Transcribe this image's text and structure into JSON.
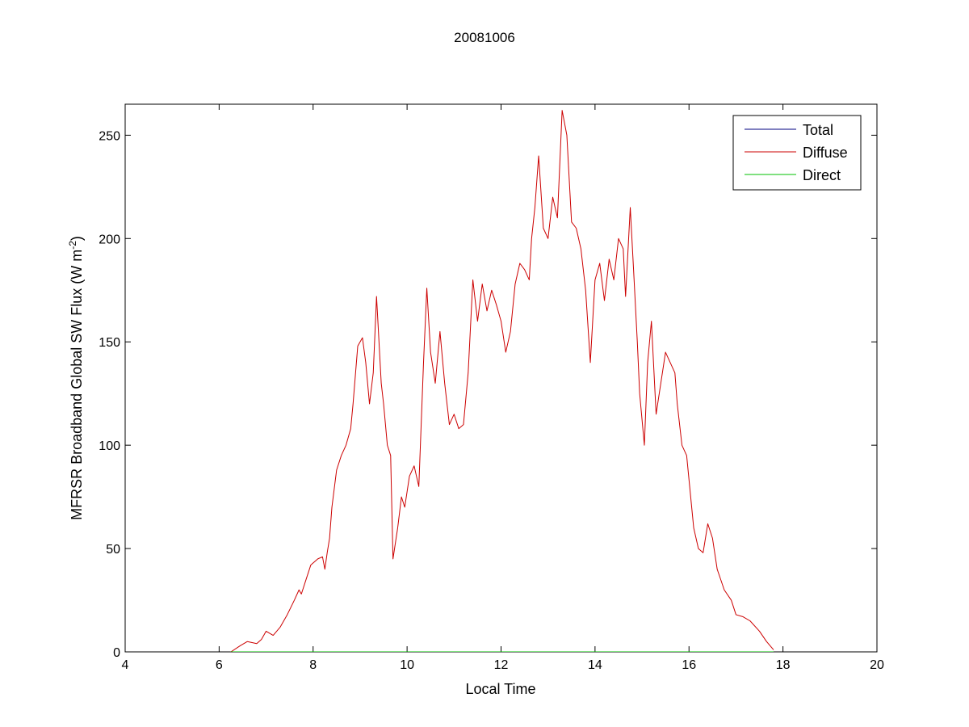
{
  "chart_data": {
    "type": "line",
    "title": "20081006",
    "xlabel": "Local Time",
    "ylabel": {
      "main": "MFRSR Broadband Global SW Flux (W m",
      "sup": "-2",
      "close": ")"
    },
    "xlim": [
      4,
      20
    ],
    "ylim": [
      0,
      265
    ],
    "xticks": [
      "4",
      "6",
      "8",
      "10",
      "12",
      "14",
      "16",
      "18",
      "20"
    ],
    "yticks": [
      "0",
      "50",
      "100",
      "150",
      "200",
      "250"
    ],
    "grid": false,
    "legend_position": "top-right",
    "series": [
      {
        "name": "Total",
        "color": "#000080",
        "x": [
          6.25,
          17.8
        ],
        "y": [
          0,
          0
        ]
      },
      {
        "name": "Diffuse",
        "color": "#cc0000",
        "x": [
          6.25,
          6.45,
          6.6,
          6.8,
          6.9,
          7.0,
          7.15,
          7.3,
          7.45,
          7.6,
          7.7,
          7.75,
          7.85,
          7.95,
          8.1,
          8.2,
          8.25,
          8.3,
          8.35,
          8.4,
          8.5,
          8.6,
          8.7,
          8.8,
          8.85,
          8.95,
          9.05,
          9.12,
          9.2,
          9.28,
          9.35,
          9.45,
          9.5,
          9.58,
          9.65,
          9.7,
          9.8,
          9.88,
          9.95,
          10.05,
          10.15,
          10.25,
          10.35,
          10.42,
          10.5,
          10.6,
          10.7,
          10.8,
          10.9,
          11.0,
          11.1,
          11.2,
          11.3,
          11.4,
          11.5,
          11.6,
          11.7,
          11.8,
          11.9,
          12.0,
          12.1,
          12.2,
          12.3,
          12.4,
          12.5,
          12.6,
          12.65,
          12.72,
          12.8,
          12.9,
          13.0,
          13.1,
          13.2,
          13.3,
          13.4,
          13.5,
          13.6,
          13.7,
          13.8,
          13.9,
          14.0,
          14.1,
          14.2,
          14.3,
          14.4,
          14.5,
          14.6,
          14.65,
          14.75,
          14.82,
          14.9,
          14.95,
          15.05,
          15.12,
          15.2,
          15.3,
          15.4,
          15.5,
          15.6,
          15.7,
          15.75,
          15.85,
          15.95,
          16.1,
          16.2,
          16.3,
          16.4,
          16.5,
          16.6,
          16.75,
          16.9,
          17.0,
          17.15,
          17.3,
          17.5,
          17.65,
          17.8
        ],
        "y": [
          0,
          3,
          5,
          4,
          6,
          10,
          8,
          12,
          18,
          25,
          30,
          28,
          35,
          42,
          45,
          46,
          40,
          48,
          55,
          70,
          88,
          95,
          100,
          108,
          120,
          148,
          152,
          140,
          120,
          135,
          172,
          130,
          120,
          100,
          95,
          45,
          60,
          75,
          70,
          85,
          90,
          80,
          140,
          176,
          145,
          130,
          155,
          130,
          110,
          115,
          108,
          110,
          135,
          180,
          160,
          178,
          165,
          175,
          168,
          160,
          145,
          155,
          178,
          188,
          185,
          180,
          200,
          215,
          240,
          205,
          200,
          220,
          210,
          262,
          250,
          208,
          205,
          195,
          175,
          140,
          180,
          188,
          170,
          190,
          180,
          200,
          195,
          172,
          215,
          185,
          150,
          125,
          100,
          140,
          160,
          115,
          130,
          145,
          140,
          135,
          120,
          100,
          95,
          60,
          50,
          48,
          62,
          55,
          40,
          30,
          25,
          18,
          17,
          15,
          10,
          5,
          1
        ]
      },
      {
        "name": "Direct",
        "color": "#00c000",
        "x": [
          6.25,
          17.8
        ],
        "y": [
          0,
          0
        ]
      }
    ]
  }
}
